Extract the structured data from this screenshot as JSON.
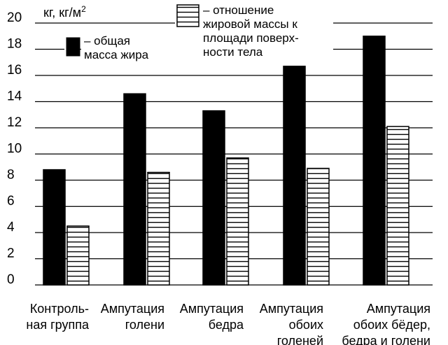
{
  "chart_data": {
    "type": "bar",
    "unit_label": "кг, кг/м",
    "unit_superscript": "2",
    "categories": [
      [
        "Контроль-",
        "ная группа"
      ],
      [
        "Ампутация",
        "голени"
      ],
      [
        "Ампутация",
        "бедра"
      ],
      [
        "Ампутация",
        "обоих",
        "голеней"
      ],
      [
        "Ампутация",
        "обоих бёдер,",
        "бедра и голени"
      ]
    ],
    "y_ticks": [
      "0",
      "2",
      "4",
      "6",
      "8",
      "10",
      "12",
      "14",
      "16",
      "18",
      "20"
    ],
    "ylim": [
      0,
      20
    ],
    "grid": true,
    "series": [
      {
        "name": "– общая масса жира",
        "legend_lines": [
          "– общая",
          "масса жира"
        ],
        "fill": "solid-black",
        "values": [
          8.8,
          14.6,
          13.3,
          16.7,
          19.0
        ]
      },
      {
        "name": "– отношение жировой массы к площади поверхности тела",
        "legend_lines": [
          "– отношение",
          "жировой массы к",
          "площади поверх-",
          "ности тела"
        ],
        "fill": "horizontal-hatch",
        "values": [
          4.5,
          8.6,
          9.7,
          8.9,
          12.1
        ]
      }
    ],
    "colors": {
      "bar": "#000000",
      "grid": "#000000",
      "background": "#ffffff"
    }
  }
}
